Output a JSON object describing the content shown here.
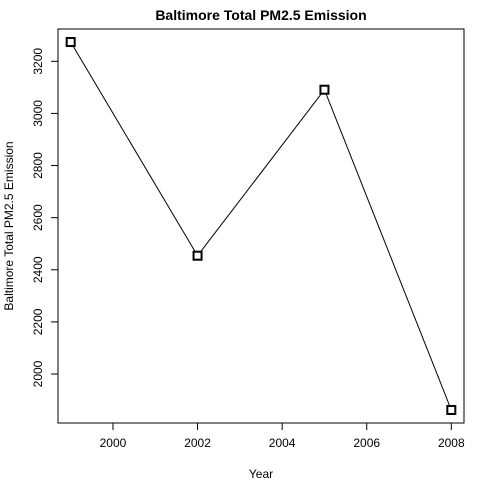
{
  "chart_data": {
    "type": "line",
    "title": "Baltimore Total PM2.5 Emission",
    "xlabel": "Year",
    "ylabel": "Baltimore Total PM2.5 Emission",
    "x": [
      1999,
      2002,
      2005,
      2008
    ],
    "series": [
      {
        "values": [
          3274,
          2454,
          3091,
          1862
        ]
      }
    ],
    "xlim": [
      1998.7,
      2008.3
    ],
    "ylim": [
      1812,
      3324
    ],
    "x_ticks": [
      2000,
      2002,
      2004,
      2006,
      2008
    ],
    "y_ticks": [
      2000,
      2200,
      2400,
      2600,
      2800,
      3000,
      3200
    ],
    "x_tick_labels": [
      "2000",
      "2002",
      "2004",
      "2006",
      "2008"
    ],
    "y_tick_labels": [
      "2000",
      "2200",
      "2400",
      "2600",
      "2800",
      "3000",
      "3200"
    ],
    "grid": false,
    "legend": "none",
    "line_color": "#000000",
    "marker": "square",
    "background": "#ffffff"
  }
}
